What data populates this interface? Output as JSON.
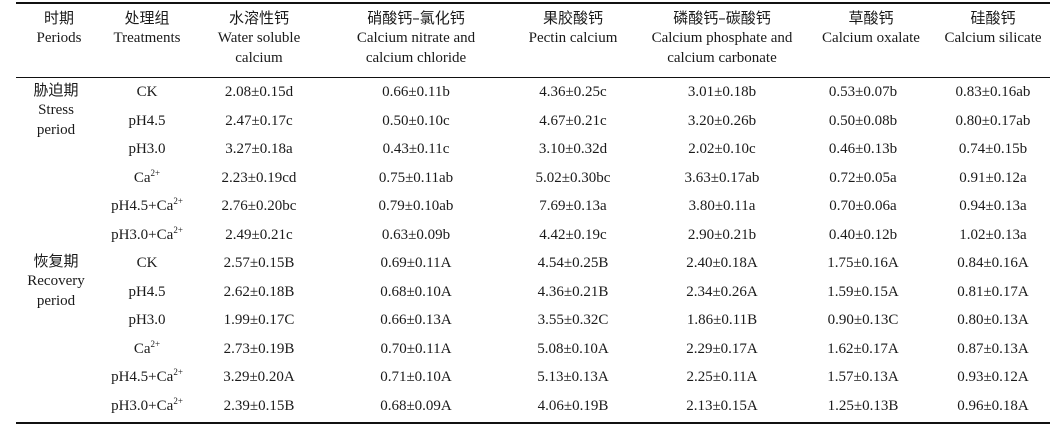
{
  "columns": [
    {
      "zh": "时期",
      "en1": "Periods",
      "en2": ""
    },
    {
      "zh": "处理组",
      "en1": "Treatments",
      "en2": ""
    },
    {
      "zh": "水溶性钙",
      "en1": "Water soluble",
      "en2": "calcium"
    },
    {
      "zh": "硝酸钙–氯化钙",
      "en1": "Calcium nitrate and",
      "en2": "calcium chloride"
    },
    {
      "zh": "果胶酸钙",
      "en1": "Pectin calcium",
      "en2": ""
    },
    {
      "zh": "磷酸钙–碳酸钙",
      "en1": "Calcium phosphate and",
      "en2": "calcium carbonate"
    },
    {
      "zh": "草酸钙",
      "en1": "Calcium oxalate",
      "en2": ""
    },
    {
      "zh": "硅酸钙",
      "en1": "Calcium silicate",
      "en2": ""
    }
  ],
  "periods": [
    {
      "zh": "胁迫期",
      "en1": "Stress",
      "en2": "period"
    },
    {
      "zh": "恢复期",
      "en1": "Recovery",
      "en2": "period"
    }
  ],
  "rows": [
    {
      "t": "CK",
      "sup": "",
      "v": [
        "2.08±0.15d",
        "0.66±0.11b",
        "4.36±0.25c",
        "3.01±0.18b",
        "0.53±0.07b",
        "0.83±0.16ab"
      ]
    },
    {
      "t": "pH4.5",
      "sup": "",
      "v": [
        "2.47±0.17c",
        "0.50±0.10c",
        "4.67±0.21c",
        "3.20±0.26b",
        "0.50±0.08b",
        "0.80±0.17ab"
      ]
    },
    {
      "t": "pH3.0",
      "sup": "",
      "v": [
        "3.27±0.18a",
        "0.43±0.11c",
        "3.10±0.32d",
        "2.02±0.10c",
        "0.46±0.13b",
        "0.74±0.15b"
      ]
    },
    {
      "t": "Ca",
      "sup": "2+",
      "v": [
        "2.23±0.19cd",
        "0.75±0.11ab",
        "5.02±0.30bc",
        "3.63±0.17ab",
        "0.72±0.05a",
        "0.91±0.12a"
      ]
    },
    {
      "t": "pH4.5+Ca",
      "sup": "2+",
      "v": [
        "2.76±0.20bc",
        "0.79±0.10ab",
        "7.69±0.13a",
        "3.80±0.11a",
        "0.70±0.06a",
        "0.94±0.13a"
      ]
    },
    {
      "t": "pH3.0+Ca",
      "sup": "2+",
      "v": [
        "2.49±0.21c",
        "0.63±0.09b",
        "4.42±0.19c",
        "2.90±0.21b",
        "0.40±0.12b",
        "1.02±0.13a"
      ]
    },
    {
      "t": "CK",
      "sup": "",
      "v": [
        "2.57±0.15B",
        "0.69±0.11A",
        "4.54±0.25B",
        "2.40±0.18A",
        "1.75±0.16A",
        "0.84±0.16A"
      ]
    },
    {
      "t": "pH4.5",
      "sup": "",
      "v": [
        "2.62±0.18B",
        "0.68±0.10A",
        "4.36±0.21B",
        "2.34±0.26A",
        "1.59±0.15A",
        "0.81±0.17A"
      ]
    },
    {
      "t": "pH3.0",
      "sup": "",
      "v": [
        "1.99±0.17C",
        "0.66±0.13A",
        "3.55±0.32C",
        "1.86±0.11B",
        "0.90±0.13C",
        "0.80±0.13A"
      ]
    },
    {
      "t": "Ca",
      "sup": "2+",
      "v": [
        "2.73±0.19B",
        "0.70±0.11A",
        "5.08±0.10A",
        "2.29±0.17A",
        "1.62±0.17A",
        "0.87±0.13A"
      ]
    },
    {
      "t": "pH4.5+Ca",
      "sup": "2+",
      "v": [
        "3.29±0.20A",
        "0.71±0.10A",
        "5.13±0.13A",
        "2.25±0.11A",
        "1.57±0.13A",
        "0.93±0.12A"
      ]
    },
    {
      "t": "pH3.0+Ca",
      "sup": "2+",
      "v": [
        "2.39±0.15B",
        "0.68±0.09A",
        "4.06±0.19B",
        "2.13±0.15A",
        "1.25±0.13B",
        "0.96±0.18A"
      ]
    }
  ]
}
